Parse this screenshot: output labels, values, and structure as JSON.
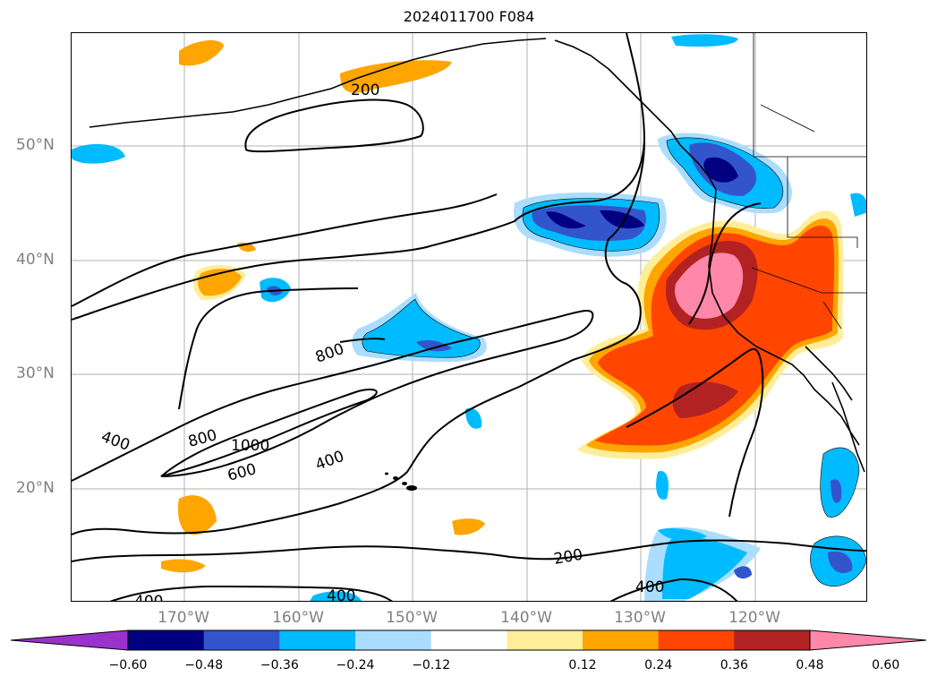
{
  "title": "2024011700 F084",
  "lat_labels": [
    "50°N",
    "40°N",
    "30°N",
    "20°N"
  ],
  "lon_labels": [
    "170°W",
    "160°W",
    "150°W",
    "140°W",
    "130°W",
    "120°W"
  ],
  "contour_labels": [
    "200",
    "800",
    "400",
    "800",
    "1000",
    "600",
    "400",
    "200",
    "400",
    "400",
    "400"
  ],
  "colorbar": {
    "ticks": [
      "−0.60",
      "−0.48",
      "−0.36",
      "−0.24",
      "−0.12",
      "0.12",
      "0.24",
      "0.36",
      "0.48",
      "0.60"
    ],
    "colors": [
      "#9933cc",
      "#000080",
      "#3355cc",
      "#00bbff",
      "#aaddff",
      "#ffffff",
      "#ffee99",
      "#ffa500",
      "#ff4500",
      "#b22222",
      "#ff88aa"
    ]
  }
}
